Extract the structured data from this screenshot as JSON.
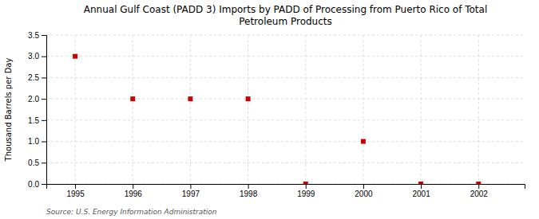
{
  "chart_data": {
    "type": "scatter",
    "title": "Annual Gulf Coast (PADD 3) Imports by PADD of Processing from Puerto Rico of Total\nPetroleum Products",
    "ylabel": "Thousand Barrels per Day",
    "annotations": [
      "Source: U.S. Energy Information Administration"
    ],
    "x": [
      1995,
      1996,
      1997,
      1998,
      1999,
      2000,
      2001,
      2002
    ],
    "values": [
      3.0,
      2.0,
      2.0,
      2.0,
      0.0,
      1.0,
      0.0,
      0.0
    ],
    "color": "#cc0000",
    "marker": "square",
    "xlim": [
      1994.5,
      2002.8
    ],
    "ylim": [
      0.0,
      3.5
    ],
    "xticks": [
      1995,
      1996,
      1997,
      1998,
      1999,
      2000,
      2001,
      2002
    ],
    "yticks": [
      {
        "value": 0.0,
        "label": "0.0"
      },
      0.5,
      {
        "value": 1.0,
        "label": "1.0"
      },
      1.5,
      {
        "value": 2.0,
        "label": "2.0"
      },
      2.5,
      {
        "value": 3.0,
        "label": "3.0"
      },
      3.5
    ],
    "grid": true
  }
}
